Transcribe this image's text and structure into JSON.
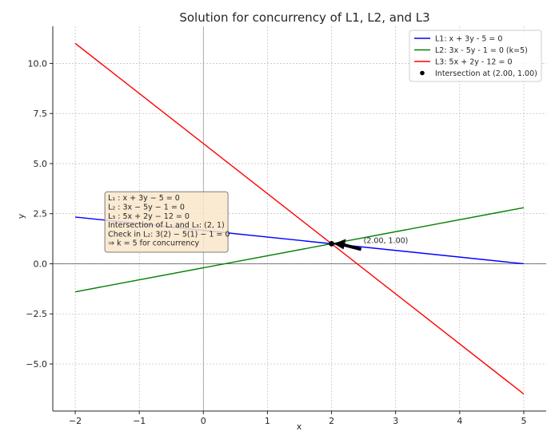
{
  "chart_data": {
    "type": "line",
    "title": "Solution for concurrency of L1, L2, and L3",
    "xlabel": "x",
    "ylabel": "y",
    "xlim": [
      -2.35,
      5.35
    ],
    "ylim": [
      -7.35,
      11.85
    ],
    "xticks": [
      -2,
      -1,
      0,
      1,
      2,
      3,
      4,
      5
    ],
    "yticks": [
      -5.0,
      -2.5,
      0.0,
      2.5,
      5.0,
      7.5,
      10.0
    ],
    "xtick_labels": [
      "−2",
      "−1",
      "0",
      "1",
      "2",
      "3",
      "4",
      "5"
    ],
    "ytick_labels": [
      "−5.0",
      "−2.5",
      "0.0",
      "2.5",
      "5.0",
      "7.5",
      "10.0"
    ],
    "grid": true,
    "legend_position": "top-right",
    "series": [
      {
        "name": "L1: x + 3y - 5 = 0",
        "color": "#0000ff",
        "x": [
          -2,
          5
        ],
        "y": [
          2.333,
          0.0
        ]
      },
      {
        "name": "L2: 3x - 5y - 1 = 0 (k=5)",
        "color": "#008000",
        "x": [
          -2,
          5
        ],
        "y": [
          -1.4,
          2.8
        ]
      },
      {
        "name": "L3: 5x + 2y - 12 = 0",
        "color": "#ff0000",
        "x": [
          -2,
          5
        ],
        "y": [
          11.0,
          -6.5
        ]
      }
    ],
    "intersection": {
      "name": "Intersection at (2.00, 1.00)",
      "color": "#000000",
      "x": 2.0,
      "y": 1.0,
      "label": "(2.00, 1.00)",
      "label_x": 2.5,
      "label_y": 1.0
    },
    "textbox": {
      "anchor_x": -1.5,
      "anchor_y": 2.6,
      "lines": [
        "L₁ : x + 3y − 5 = 0",
        "L₂ : 3x − 5y − 1 = 0",
        "L₃ : 5x + 2y − 12 = 0",
        "Intersection of L₁ and L₃: (2, 1)",
        "Check in L₂: 3(2) − 5(1) − 1 = 0",
        "⇒ k = 5 for concurrency"
      ]
    }
  }
}
